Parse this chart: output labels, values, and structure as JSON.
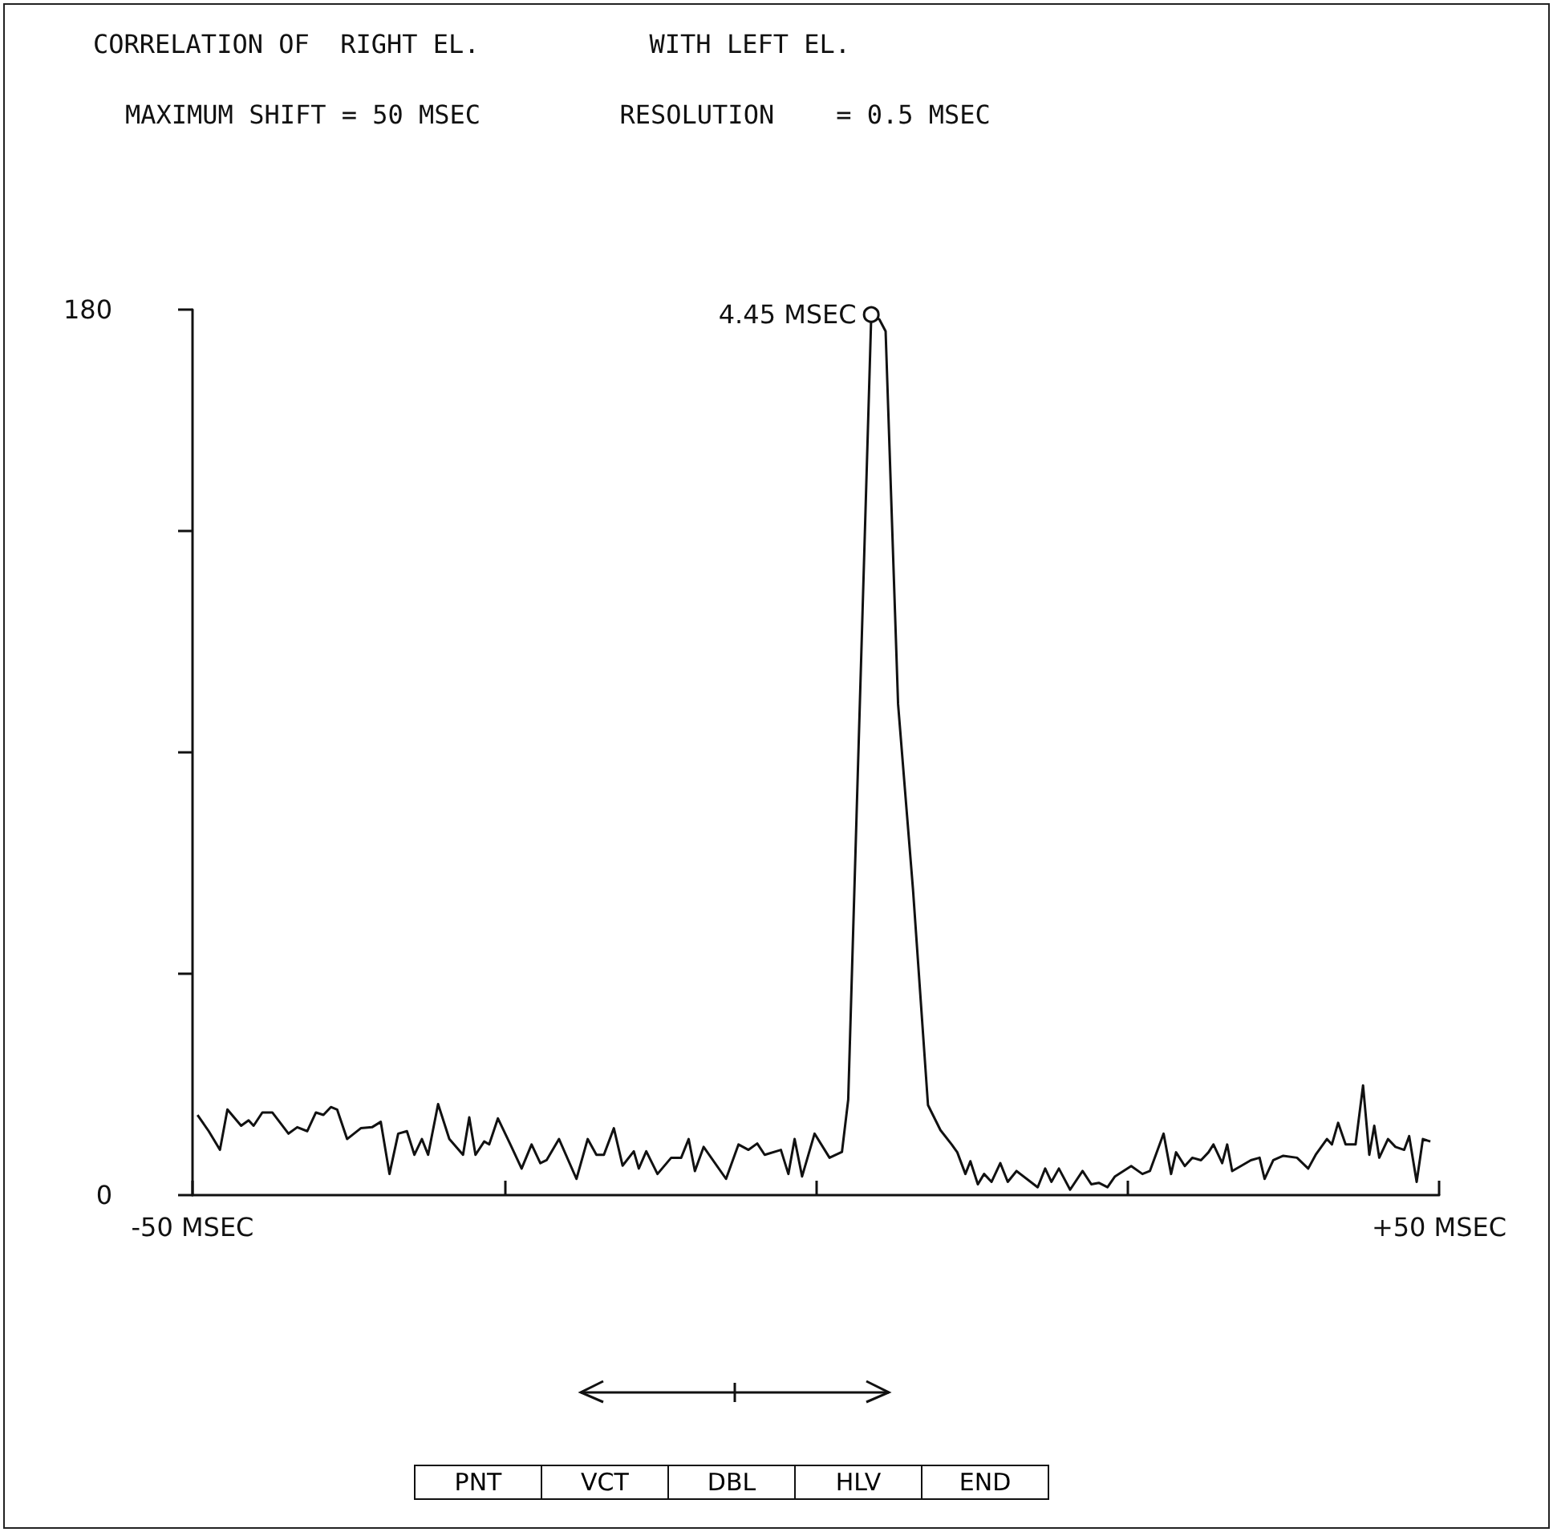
{
  "chart_data": {
    "type": "line",
    "title": "CORRELATION OF  RIGHT EL.           WITH LEFT EL.",
    "subtitle": "MAXIMUM SHIFT = 50 MSEC         RESOLUTION    = 0.5 MSEC",
    "x": [
      -49.6,
      -48.7,
      -47.8,
      -47.2,
      -46.1,
      -45.5,
      -45.1,
      -44.4,
      -43.6,
      -42.3,
      -41.6,
      -40.8,
      -40.1,
      -39.5,
      -38.9,
      -38.4,
      -37.6,
      -36.5,
      -35.6,
      -34.9,
      -34.2,
      -33.5,
      -32.8,
      -32.2,
      -31.6,
      -31.1,
      -30.3,
      -29.4,
      -28.3,
      -27.8,
      -27.3,
      -26.6,
      -26.2,
      -25.5,
      -24.5,
      -23.6,
      -22.8,
      -22.1,
      -21.6,
      -20.6,
      -19.2,
      -18.3,
      -17.6,
      -17.0,
      -16.2,
      -15.5,
      -14.6,
      -14.2,
      -13.6,
      -12.7,
      -11.6,
      -10.8,
      -10.2,
      -9.7,
      -9.0,
      -7.2,
      -6.2,
      -5.4,
      -4.7,
      -4.1,
      -2.8,
      -2.2,
      -1.7,
      -1.1,
      -0.1,
      1.1,
      2.1,
      2.6,
      4.45,
      5.1,
      5.6,
      6.6,
      7.8,
      9.0,
      10.0,
      10.9,
      11.35,
      12.0,
      12.4,
      13.0,
      13.5,
      14.1,
      14.8,
      15.4,
      16.1,
      17.8,
      18.4,
      18.9,
      19.5,
      20.4,
      21.4,
      22.1,
      22.7,
      23.4,
      24.0,
      25.3,
      26.2,
      26.8,
      27.9,
      28.5,
      28.9,
      29.6,
      30.2,
      30.9,
      31.5,
      31.9,
      32.6,
      33.0,
      33.4,
      34.1,
      34.9,
      35.6,
      36.0,
      36.7,
      37.5,
      38.6,
      39.5,
      40.1,
      41.0,
      41.4,
      41.9,
      42.5,
      43.3,
      43.9,
      44.4,
      44.8,
      45.2,
      45.9,
      46.5,
      47.2,
      47.6,
      48.2,
      48.7,
      49.3
    ],
    "values": [
      16.3,
      13.0,
      9.2,
      17.4,
      14.1,
      15.2,
      14.1,
      16.8,
      16.8,
      12.5,
      13.8,
      13.0,
      16.8,
      16.3,
      17.9,
      17.4,
      11.4,
      13.6,
      13.8,
      14.9,
      4.3,
      12.5,
      13.0,
      8.2,
      11.4,
      8.2,
      18.5,
      11.4,
      8.2,
      15.8,
      8.2,
      10.9,
      10.3,
      15.6,
      10.3,
      5.4,
      10.3,
      6.5,
      7.1,
      11.4,
      3.3,
      11.4,
      8.2,
      8.2,
      13.6,
      6.0,
      8.9,
      5.4,
      8.9,
      4.3,
      7.6,
      7.6,
      11.4,
      4.9,
      9.8,
      3.3,
      10.3,
      9.2,
      10.5,
      8.2,
      9.2,
      4.3,
      11.4,
      3.8,
      12.5,
      7.6,
      8.8,
      19.4,
      179,
      178,
      175.6,
      99.8,
      62,
      18.3,
      13.2,
      10.3,
      8.7,
      4.3,
      6.9,
      2.2,
      4.3,
      2.7,
      6.5,
      2.7,
      4.9,
      1.6,
      5.4,
      2.7,
      5.4,
      1.1,
      4.9,
      2.2,
      2.5,
      1.6,
      3.8,
      5.9,
      4.3,
      4.9,
      12.5,
      4.3,
      8.7,
      5.9,
      7.6,
      7.1,
      8.7,
      10.3,
      6.5,
      10.3,
      4.9,
      5.9,
      7.1,
      7.6,
      3.3,
      7.1,
      8.0,
      7.6,
      5.4,
      8.2,
      11.4,
      10.3,
      14.7,
      10.3,
      10.3,
      22.3,
      8.2,
      14.1,
      7.6,
      11.4,
      9.8,
      9.2,
      12.0,
      2.7,
      11.4,
      10.9
    ],
    "color": "#111111",
    "xlim": [
      -50,
      50
    ],
    "xticks": [
      {
        "value": -50,
        "label": "-50 MSEC"
      },
      {
        "value": -25,
        "label": null
      },
      {
        "value": 0,
        "label": null
      },
      {
        "value": 25,
        "label": null
      },
      {
        "value": 50,
        "label": "+50 MSEC"
      }
    ],
    "ylim": [
      0,
      180
    ],
    "yticks": [
      0,
      {
        "value": 45,
        "label": null
      },
      {
        "value": 90,
        "label": null
      },
      {
        "value": 135,
        "label": null
      },
      180
    ],
    "grid": false,
    "annotations": [
      {
        "text": "4.45 MSEC",
        "x": 4.45,
        "y": 179
      },
      "PNT",
      "VCT",
      "DBL",
      "HLV",
      "END"
    ]
  }
}
